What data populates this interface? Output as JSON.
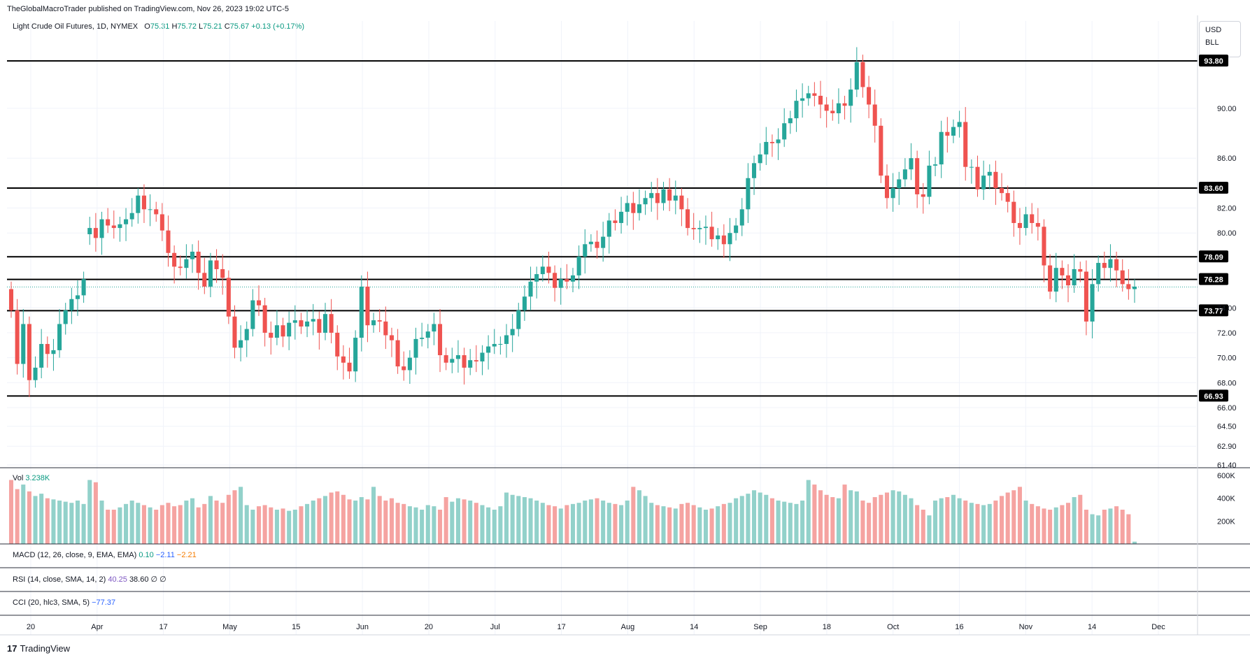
{
  "publisher": "TheGlobalMacroTrader published on TradingView.com, Nov 26, 2023 19:02 UTC-5",
  "legend": {
    "symbol": "Light Crude Oil Futures, 1D, NYMEX",
    "o_label": "O",
    "o": "75.31",
    "h_label": "H",
    "h": "75.72",
    "l_label": "L",
    "l": "75.21",
    "c_label": "C",
    "c": "75.67",
    "change": "+0.13 (+0.17%)"
  },
  "currency": [
    "USD",
    "BLL"
  ],
  "volume_legend": {
    "label": "Vol",
    "value": "3.238K"
  },
  "macd_legend": {
    "label": "MACD (12, 26, close, 9, EMA, EMA)",
    "v1": "0.10",
    "v2": "−2.11",
    "v3": "−2.21"
  },
  "rsi_legend": {
    "label": "RSI (14, close, SMA, 14, 2)",
    "v1": "40.25",
    "v2": "38.60",
    "v3": "∅ ∅"
  },
  "cci_legend": {
    "label": "CCI (20, hlc3, SMA, 5)",
    "v1": "−77.37"
  },
  "footer": {
    "brand_mark": "17",
    "brand": "TradingView"
  },
  "colors": {
    "up": "#26a69a",
    "down": "#ef5350",
    "vol_up": "#92d1ca",
    "vol_down": "#f5a3a1",
    "grid": "#f0f3fa"
  },
  "chart_data": {
    "type": "candlestick",
    "y_ticks": [
      "90.00",
      "86.00",
      "82.00",
      "80.00",
      "74.00",
      "72.00",
      "70.00",
      "68.00",
      "66.00",
      "64.50",
      "62.90",
      "61.40"
    ],
    "ylim": [
      61.4,
      97.0
    ],
    "x_ticks": [
      "20",
      "Apr",
      "17",
      "May",
      "15",
      "Jun",
      "20",
      "Jul",
      "17",
      "Aug",
      "14",
      "Sep",
      "18",
      "Oct",
      "16",
      "Nov",
      "14",
      "Dec"
    ],
    "horizontal_levels": [
      "93.80",
      "83.60",
      "78.09",
      "76.28",
      "73.77",
      "66.93"
    ],
    "current_price": 75.67,
    "volume_ticks": [
      "600K",
      "400K",
      "200K"
    ],
    "volume_max": 600000,
    "series_close": [
      73.8,
      69.5,
      72.7,
      68.2,
      69.2,
      71.1,
      70.3,
      70.6,
      72.7,
      73.8,
      74.7,
      75.0,
      76.3,
      80.4,
      79.6,
      81.1,
      80.6,
      80.4,
      80.7,
      81.1,
      81.6,
      83.0,
      81.9,
      81.9,
      81.5,
      80.2,
      78.4,
      77.3,
      77.2,
      77.9,
      78.5,
      76.8,
      75.7,
      77.8,
      77.1,
      76.4,
      73.3,
      70.8,
      71.4,
      72.3,
      74.6,
      74.2,
      72.0,
      71.6,
      72.6,
      71.7,
      72.8,
      73.0,
      72.5,
      72.9,
      73.1,
      72.0,
      73.5,
      72.0,
      70.1,
      69.6,
      68.9,
      71.6,
      75.7,
      72.6,
      73.0,
      72.9,
      71.8,
      71.4,
      69.3,
      69.0,
      70.0,
      71.5,
      71.6,
      72.1,
      72.7,
      70.2,
      69.6,
      69.9,
      70.2,
      69.2,
      69.8,
      69.7,
      70.4,
      70.9,
      71.1,
      71.1,
      71.8,
      72.3,
      73.8,
      74.9,
      76.1,
      76.7,
      77.3,
      76.8,
      75.6,
      76.3,
      76.1,
      76.6,
      78.1,
      79.1,
      79.3,
      78.8,
      79.7,
      81.0,
      80.8,
      81.7,
      82.4,
      81.6,
      82.3,
      82.8,
      83.2,
      82.4,
      83.5,
      82.6,
      83.0,
      81.9,
      80.4,
      80.3,
      80.4,
      80.5,
      79.5,
      79.8,
      79.1,
      80.0,
      80.6,
      81.9,
      84.4,
      85.6,
      86.3,
      87.3,
      87.2,
      87.5,
      88.8,
      89.2,
      90.6,
      90.8,
      91.2,
      91.0,
      90.3,
      89.8,
      89.6,
      90.4,
      90.2,
      91.5,
      93.7,
      91.7,
      90.3,
      88.6,
      84.6,
      82.8,
      83.6,
      84.3,
      85.1,
      86.0,
      83.1,
      82.9,
      85.4,
      85.5,
      88.1,
      87.8,
      88.5,
      88.9,
      85.3,
      85.3,
      83.5,
      84.6,
      84.9,
      83.6,
      83.2,
      82.5,
      80.8,
      80.4,
      81.5,
      80.8,
      80.5,
      77.4,
      75.3,
      77.2,
      76.6,
      75.8,
      77.1,
      76.9,
      72.9,
      75.9,
      77.6,
      77.2,
      77.9,
      77.0,
      75.9,
      75.5,
      75.7
    ],
    "series_open": [
      75.5,
      73.8,
      69.5,
      72.7,
      68.2,
      69.2,
      71.1,
      70.3,
      70.6,
      72.7,
      73.8,
      74.7,
      75.0,
      79.9,
      80.4,
      79.6,
      81.1,
      80.6,
      80.4,
      80.7,
      81.1,
      81.6,
      83.0,
      81.9,
      81.9,
      81.5,
      80.2,
      78.4,
      77.3,
      77.2,
      77.9,
      78.5,
      76.8,
      75.7,
      77.8,
      77.1,
      76.4,
      73.3,
      70.8,
      71.4,
      72.3,
      74.6,
      74.2,
      72.0,
      71.6,
      72.6,
      71.7,
      72.8,
      73.0,
      72.5,
      72.9,
      73.1,
      72.0,
      73.5,
      72.0,
      70.1,
      69.6,
      68.9,
      71.6,
      75.7,
      72.6,
      73.0,
      72.9,
      71.8,
      71.4,
      69.3,
      69.0,
      70.0,
      71.5,
      71.6,
      72.1,
      72.7,
      70.2,
      69.6,
      69.9,
      70.2,
      69.2,
      69.8,
      69.7,
      70.4,
      70.9,
      71.1,
      71.1,
      71.8,
      72.3,
      73.8,
      74.9,
      76.1,
      76.7,
      77.3,
      76.8,
      75.6,
      76.3,
      76.1,
      76.6,
      78.1,
      79.1,
      79.3,
      78.8,
      79.7,
      81.0,
      80.8,
      81.7,
      82.4,
      81.6,
      82.3,
      82.8,
      83.2,
      82.4,
      83.5,
      82.6,
      83.0,
      81.9,
      80.4,
      80.3,
      80.4,
      80.5,
      79.5,
      79.8,
      79.1,
      80.0,
      80.6,
      81.9,
      84.4,
      85.6,
      86.3,
      87.3,
      87.2,
      87.5,
      88.8,
      89.2,
      90.6,
      90.8,
      91.2,
      91.0,
      90.3,
      89.8,
      89.6,
      90.4,
      90.2,
      91.5,
      93.7,
      91.7,
      90.3,
      88.6,
      84.6,
      82.8,
      83.6,
      84.3,
      85.1,
      86.0,
      83.1,
      82.9,
      85.4,
      85.5,
      88.1,
      87.8,
      88.5,
      88.9,
      85.3,
      85.3,
      83.5,
      84.6,
      84.9,
      83.6,
      83.2,
      82.5,
      80.8,
      80.4,
      81.5,
      80.8,
      80.5,
      77.4,
      75.3,
      77.2,
      76.6,
      75.8,
      77.1,
      76.9,
      72.9,
      75.9,
      77.6,
      77.2,
      77.9,
      77.0,
      75.9,
      75.5
    ],
    "volumes": [
      560,
      480,
      520,
      460,
      420,
      440,
      400,
      390,
      380,
      370,
      360,
      380,
      350,
      560,
      540,
      380,
      300,
      300,
      320,
      350,
      380,
      360,
      340,
      320,
      300,
      340,
      360,
      330,
      340,
      380,
      400,
      320,
      350,
      420,
      380,
      360,
      430,
      470,
      500,
      340,
      300,
      330,
      340,
      320,
      300,
      310,
      290,
      300,
      330,
      350,
      380,
      400,
      420,
      450,
      460,
      430,
      390,
      380,
      410,
      390,
      500,
      420,
      380,
      400,
      360,
      350,
      330,
      320,
      300,
      340,
      330,
      300,
      410,
      370,
      400,
      390,
      380,
      360,
      340,
      320,
      300,
      330,
      450,
      430,
      420,
      410,
      400,
      380,
      360,
      340,
      330,
      310,
      340,
      350,
      360,
      380,
      390,
      400,
      380,
      360,
      350,
      340,
      380,
      500,
      470,
      420,
      360,
      340,
      330,
      320,
      310,
      350,
      360,
      340,
      320,
      300,
      310,
      330,
      350,
      360,
      400,
      420,
      440,
      470,
      450,
      430,
      400,
      380,
      370,
      360,
      350,
      380,
      560,
      520,
      470,
      430,
      410,
      400,
      520,
      470,
      460,
      380,
      360,
      410,
      430,
      450,
      470,
      460,
      430,
      400,
      340,
      300,
      250,
      380,
      400,
      410,
      430,
      400,
      380,
      360,
      350,
      340,
      350,
      380,
      420,
      450,
      470,
      500,
      380,
      350,
      330,
      310,
      300,
      320,
      340,
      360,
      410,
      430,
      300,
      260,
      250,
      300,
      310,
      330,
      300,
      260,
      20
    ]
  }
}
